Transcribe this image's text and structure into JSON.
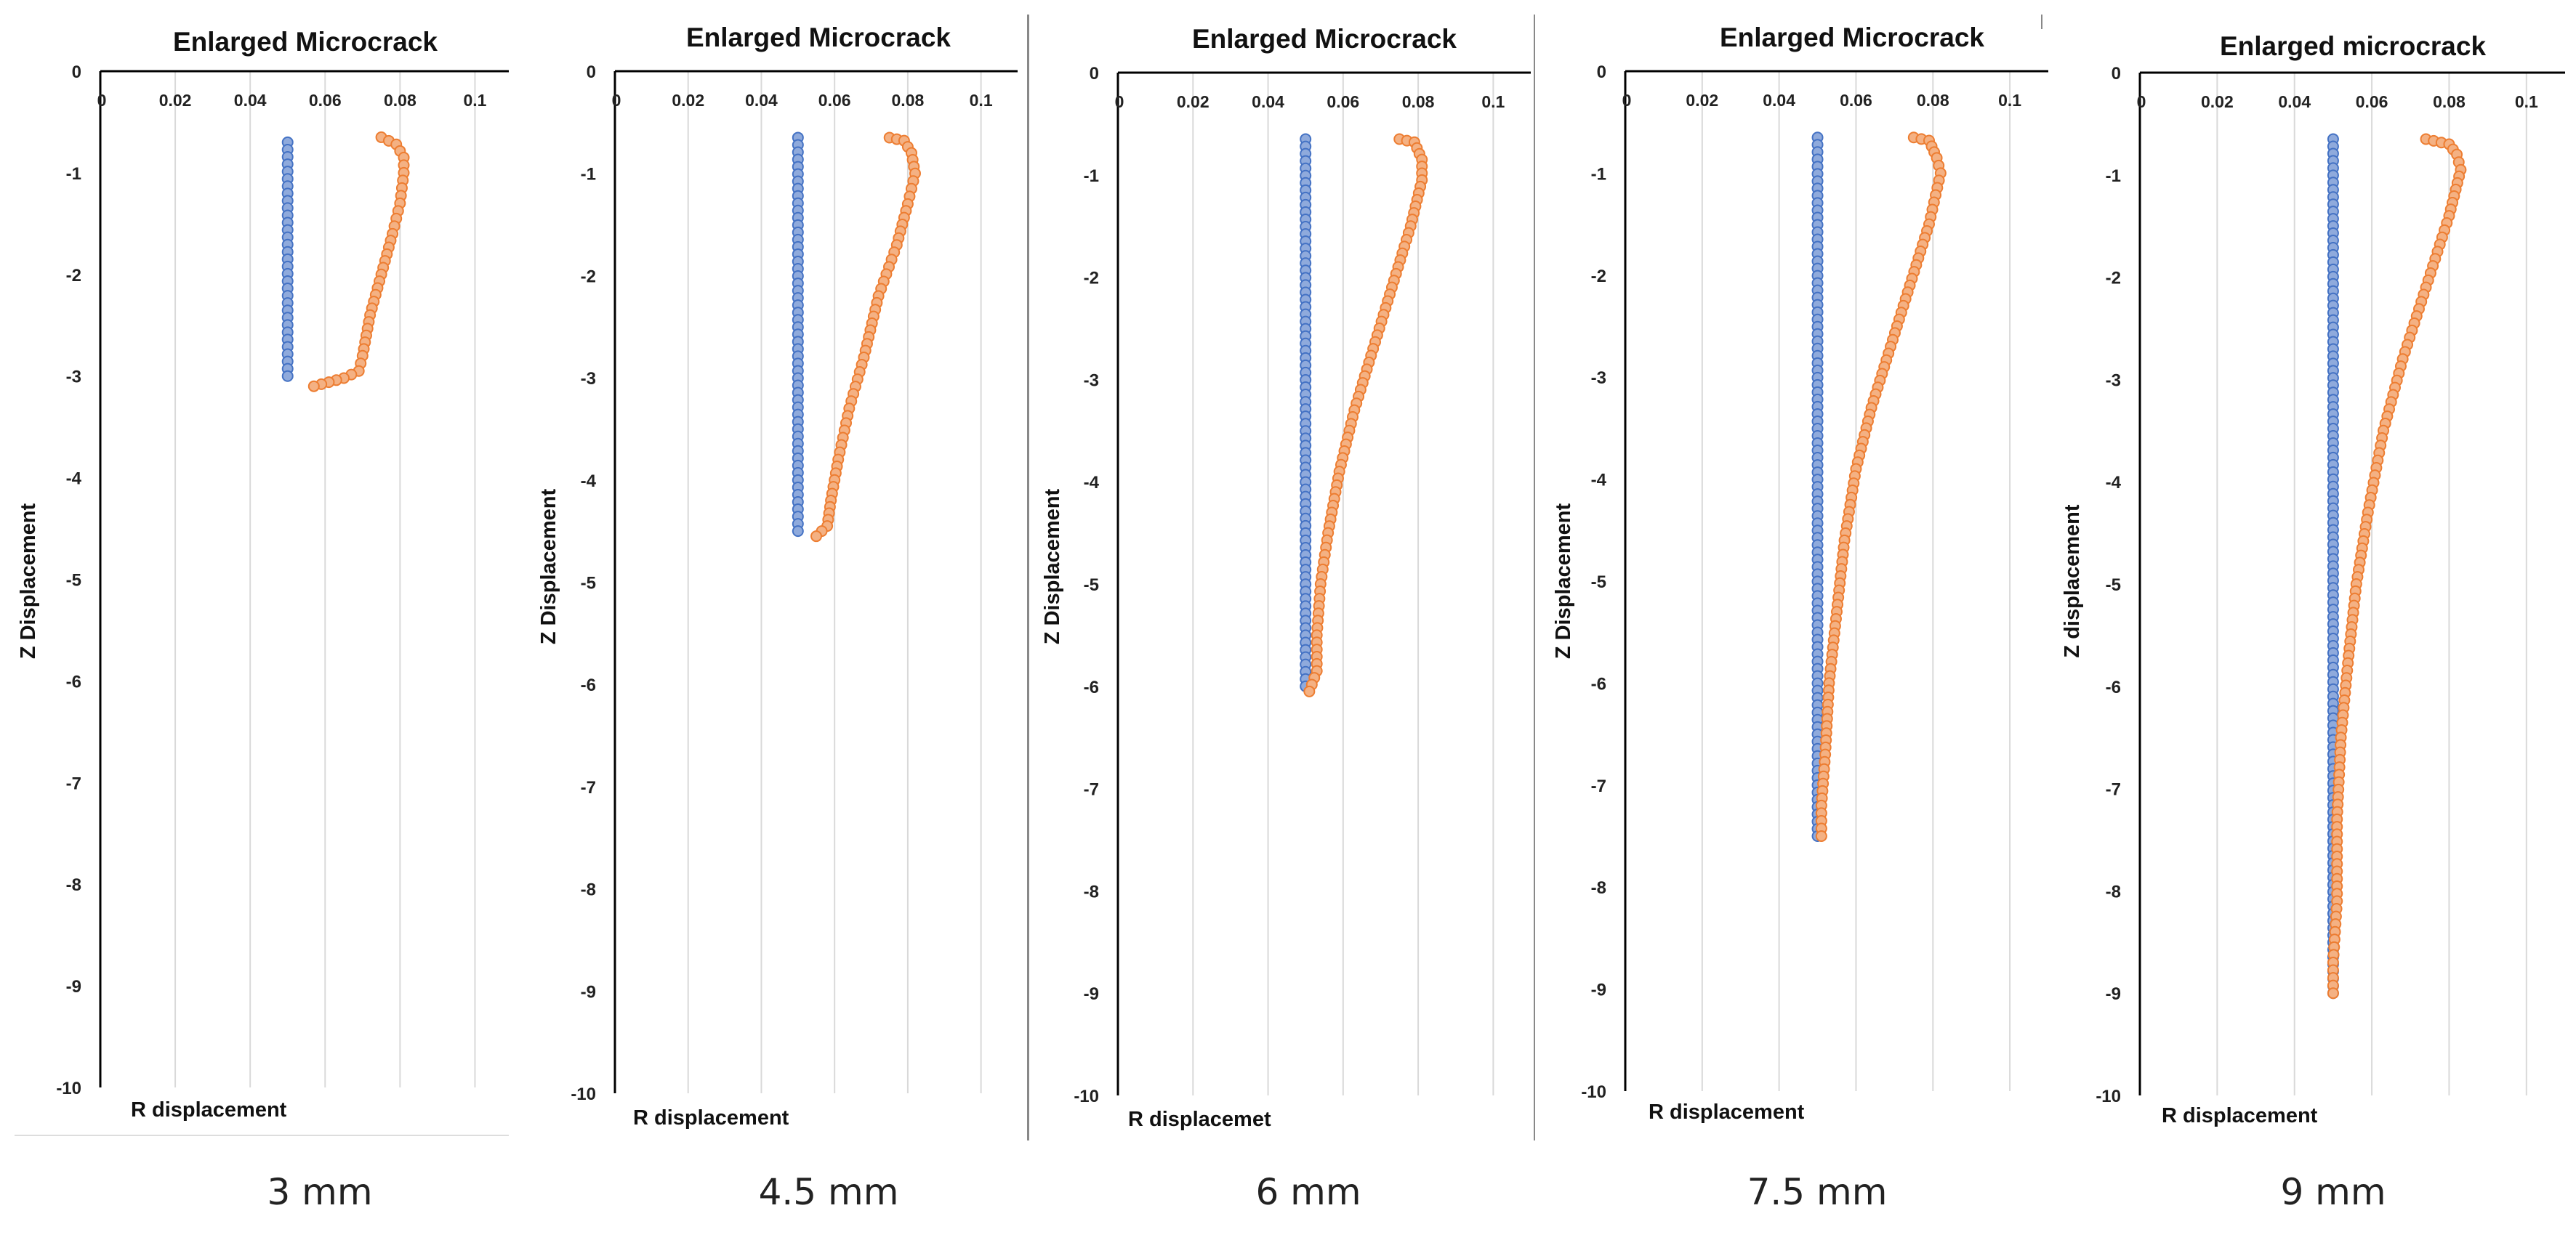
{
  "colors": {
    "blue": "#4472c4",
    "blue_fill": "#8faadc",
    "orange": "#ed7d31",
    "orange_fill": "#f4b183",
    "grid": "#d9d9d9",
    "axis": "#000000"
  },
  "chart_data": [
    {
      "type": "scatter",
      "title": "Enlarged Microcrack",
      "xlabel": "R displacement",
      "ylabel": "Z Displacement",
      "caption": "3 mm",
      "xlim": [
        0,
        0.11
      ],
      "ylim": [
        -10,
        0
      ],
      "x_ticks": [
        "0",
        "0.02",
        "0.04",
        "0.06",
        "0.08",
        "0.1"
      ],
      "y_ticks": [
        "0",
        "-1",
        "-2",
        "-3",
        "-4",
        "-5",
        "-6",
        "-7",
        "-8",
        "-9",
        "-10"
      ],
      "series": [
        {
          "name": "blue",
          "points": [
            [
              0.05,
              -0.7
            ],
            [
              0.05,
              -3.0
            ]
          ]
        },
        {
          "name": "orange",
          "points": [
            [
              0.075,
              -0.65
            ],
            [
              0.079,
              -0.72
            ],
            [
              0.081,
              -0.85
            ],
            [
              0.081,
              -1.0
            ],
            [
              0.08,
              -1.3
            ],
            [
              0.078,
              -1.6
            ],
            [
              0.075,
              -2.0
            ],
            [
              0.072,
              -2.4
            ],
            [
              0.07,
              -2.8
            ],
            [
              0.069,
              -2.95
            ],
            [
              0.065,
              -3.02
            ],
            [
              0.057,
              -3.1
            ]
          ]
        }
      ]
    },
    {
      "type": "scatter",
      "title": "Enlarged Microcrack",
      "xlabel": "R displacement",
      "ylabel": "Z Displacement",
      "caption": "4.5 mm",
      "xlim": [
        0,
        0.11
      ],
      "ylim": [
        -10,
        0
      ],
      "x_ticks": [
        "0",
        "0.02",
        "0.04",
        "0.06",
        "0.08",
        "0.1"
      ],
      "y_ticks": [
        "0",
        "-1",
        "-2",
        "-3",
        "-4",
        "-5",
        "-6",
        "-7",
        "-8",
        "-9",
        "-10"
      ],
      "series": [
        {
          "name": "blue",
          "points": [
            [
              0.05,
              -0.65
            ],
            [
              0.05,
              -4.5
            ]
          ]
        },
        {
          "name": "orange",
          "points": [
            [
              0.075,
              -0.65
            ],
            [
              0.079,
              -0.68
            ],
            [
              0.081,
              -0.8
            ],
            [
              0.082,
              -1.0
            ],
            [
              0.08,
              -1.3
            ],
            [
              0.077,
              -1.7
            ],
            [
              0.072,
              -2.2
            ],
            [
              0.068,
              -2.8
            ],
            [
              0.064,
              -3.3
            ],
            [
              0.061,
              -3.8
            ],
            [
              0.059,
              -4.2
            ],
            [
              0.058,
              -4.45
            ],
            [
              0.055,
              -4.55
            ]
          ]
        }
      ]
    },
    {
      "type": "scatter",
      "title": "Enlarged Microcrack",
      "xlabel": "R displacemet",
      "ylabel": "Z Displacement",
      "caption": "6 mm",
      "xlim": [
        0,
        0.11
      ],
      "ylim": [
        -10,
        0
      ],
      "x_ticks": [
        "0",
        "0.02",
        "0.04",
        "0.06",
        "0.08",
        "0.1"
      ],
      "y_ticks": [
        "0",
        "-1",
        "-2",
        "-3",
        "-4",
        "-5",
        "-6",
        "-7",
        "-8",
        "-9",
        "-10"
      ],
      "series": [
        {
          "name": "blue",
          "points": [
            [
              0.05,
              -0.65
            ],
            [
              0.05,
              -6.0
            ]
          ]
        },
        {
          "name": "orange",
          "points": [
            [
              0.075,
              -0.65
            ],
            [
              0.079,
              -0.68
            ],
            [
              0.081,
              -0.85
            ],
            [
              0.081,
              -1.05
            ],
            [
              0.078,
              -1.5
            ],
            [
              0.073,
              -2.1
            ],
            [
              0.068,
              -2.7
            ],
            [
              0.063,
              -3.3
            ],
            [
              0.059,
              -3.9
            ],
            [
              0.056,
              -4.5
            ],
            [
              0.054,
              -5.0
            ],
            [
              0.053,
              -5.5
            ],
            [
              0.053,
              -5.85
            ],
            [
              0.051,
              -6.05
            ]
          ]
        }
      ]
    },
    {
      "type": "scatter",
      "title": "Enlarged Microcrack",
      "xlabel": "R displacement",
      "ylabel": "Z Displacement",
      "caption": "7.5 mm",
      "xlim": [
        0,
        0.11
      ],
      "ylim": [
        -10,
        0
      ],
      "x_ticks": [
        "0",
        "0.02",
        "0.04",
        "0.06",
        "0.08",
        "0.1"
      ],
      "y_ticks": [
        "0",
        "-1",
        "-2",
        "-3",
        "-4",
        "-5",
        "-6",
        "-7",
        "-8",
        "-9",
        "-10"
      ],
      "series": [
        {
          "name": "blue",
          "points": [
            [
              0.05,
              -0.65
            ],
            [
              0.05,
              -7.5
            ]
          ]
        },
        {
          "name": "orange",
          "points": [
            [
              0.075,
              -0.65
            ],
            [
              0.079,
              -0.68
            ],
            [
              0.081,
              -0.85
            ],
            [
              0.082,
              -1.0
            ],
            [
              0.079,
              -1.5
            ],
            [
              0.074,
              -2.1
            ],
            [
              0.069,
              -2.7
            ],
            [
              0.064,
              -3.3
            ],
            [
              0.06,
              -3.9
            ],
            [
              0.057,
              -4.6
            ],
            [
              0.055,
              -5.3
            ],
            [
              0.053,
              -6.0
            ],
            [
              0.052,
              -6.7
            ],
            [
              0.051,
              -7.2
            ],
            [
              0.051,
              -7.5
            ]
          ]
        }
      ]
    },
    {
      "type": "scatter",
      "title": "Enlarged microcrack",
      "xlabel": "R displacement",
      "ylabel": "Z displacement",
      "caption": "9 mm",
      "xlim": [
        0,
        0.11
      ],
      "ylim": [
        -10,
        0
      ],
      "x_ticks": [
        "0",
        "0.02",
        "0.04",
        "0.06",
        "0.08",
        "0.1"
      ],
      "y_ticks": [
        "0",
        "-1",
        "-2",
        "-3",
        "-4",
        "-5",
        "-6",
        "-7",
        "-8",
        "-9",
        "-10"
      ],
      "series": [
        {
          "name": "blue",
          "points": [
            [
              0.05,
              -0.65
            ],
            [
              0.05,
              -9.0
            ]
          ]
        },
        {
          "name": "orange",
          "points": [
            [
              0.074,
              -0.65
            ],
            [
              0.08,
              -0.7
            ],
            [
              0.082,
              -0.8
            ],
            [
              0.083,
              -0.95
            ],
            [
              0.08,
              -1.4
            ],
            [
              0.074,
              -2.1
            ],
            [
              0.068,
              -2.8
            ],
            [
              0.063,
              -3.5
            ],
            [
              0.059,
              -4.3
            ],
            [
              0.056,
              -5.0
            ],
            [
              0.054,
              -5.7
            ],
            [
              0.052,
              -6.5
            ],
            [
              0.051,
              -7.3
            ],
            [
              0.051,
              -8.1
            ],
            [
              0.05,
              -8.7
            ],
            [
              0.05,
              -9.0
            ]
          ]
        }
      ]
    }
  ]
}
